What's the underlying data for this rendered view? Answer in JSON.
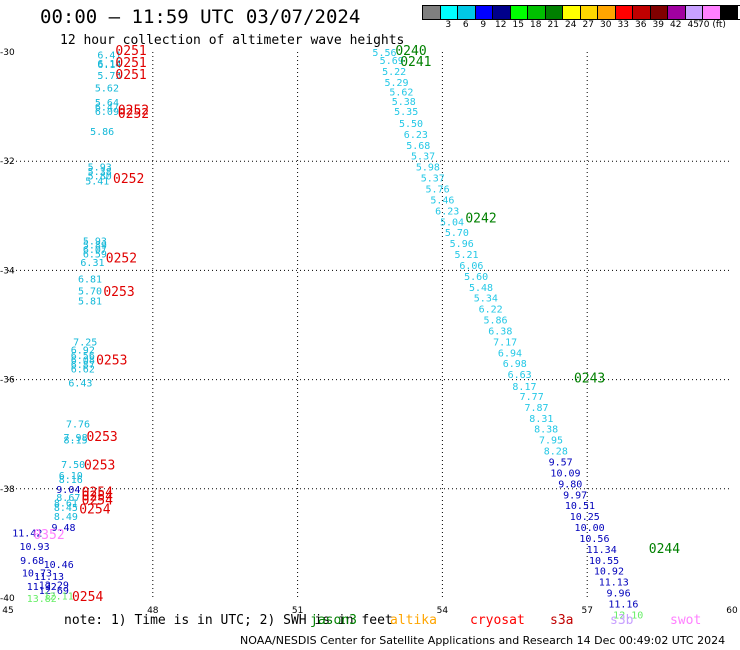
{
  "header": {
    "title": "00:00 – 11:59 UTC 03/07/2024",
    "subtitle": "12 hour collection of altimeter wave heights"
  },
  "legend": {
    "items": [
      {
        "label": "",
        "color": "#7f7f7f"
      },
      {
        "label": "3",
        "color": "#00ffff"
      },
      {
        "label": "6",
        "color": "#00c8e6"
      },
      {
        "label": "9",
        "color": "#0000ff"
      },
      {
        "label": "12",
        "color": "#00008b"
      },
      {
        "label": "15",
        "color": "#00ff00"
      },
      {
        "label": "18",
        "color": "#00c000"
      },
      {
        "label": "21",
        "color": "#008000"
      },
      {
        "label": "24",
        "color": "#ffff00"
      },
      {
        "label": "27",
        "color": "#ffd700"
      },
      {
        "label": "30",
        "color": "#ffa500"
      },
      {
        "label": "33",
        "color": "#ff0000"
      },
      {
        "label": "36",
        "color": "#c00000"
      },
      {
        "label": "39",
        "color": "#800000"
      },
      {
        "label": "42",
        "color": "#a000a0"
      },
      {
        "label": "45",
        "color": "#c8a0ff"
      },
      {
        "label": "70 (ft)",
        "color": "#ff80ff"
      },
      {
        "label": "",
        "color": "#000000"
      }
    ]
  },
  "footnote": "note: 1) Time is in UTC; 2) SWH is in feet",
  "missions": [
    {
      "label": "jason3",
      "color": "#008000"
    },
    {
      "label": "altika",
      "color": "#ffa500"
    },
    {
      "label": "cryosat",
      "color": "#ff0000"
    },
    {
      "label": "s3a",
      "color": "#c00000"
    },
    {
      "label": "s3b",
      "color": "#c8a0ff"
    },
    {
      "label": "swot",
      "color": "#ff80ff"
    }
  ],
  "credit": "NOAA/NESDIS Center for Satellite Applications and Research    14 Dec 00:49:02 UTC 2024",
  "chart_data": {
    "type": "scatter",
    "xlim": [
      45,
      60
    ],
    "ylim": [
      -40,
      -30
    ],
    "x_ticks": [
      "45",
      "48",
      "51",
      "54",
      "57",
      "60"
    ],
    "y_ticks": [
      "-30",
      "-32",
      "-34",
      "-36",
      "-38",
      "-40"
    ],
    "grid": true,
    "series": [
      {
        "name": "",
        "color": "#12b8d8",
        "points": [
          {
            "x": 47.1,
            "y": -30.05,
            "t": "6.41"
          },
          {
            "x": 47.1,
            "y": -30.2,
            "t": "6.14"
          },
          {
            "x": 47.1,
            "y": -30.22,
            "t": "6.14"
          },
          {
            "x": 47.1,
            "y": -30.42,
            "t": "5.75"
          },
          {
            "x": 47.05,
            "y": -30.65,
            "t": "5.62"
          },
          {
            "x": 47.05,
            "y": -30.92,
            "t": "5.64"
          },
          {
            "x": 47.05,
            "y": -31.0,
            "t": "6.47"
          },
          {
            "x": 47.05,
            "y": -31.08,
            "t": "6.09"
          },
          {
            "x": 46.95,
            "y": -31.45,
            "t": "5.86"
          },
          {
            "x": 46.9,
            "y": -32.1,
            "t": "5.93"
          },
          {
            "x": 46.9,
            "y": -32.18,
            "t": "5.38"
          },
          {
            "x": 46.9,
            "y": -32.26,
            "t": "5.80"
          },
          {
            "x": 46.85,
            "y": -32.35,
            "t": "5.41"
          },
          {
            "x": 46.8,
            "y": -33.45,
            "t": "5.93"
          },
          {
            "x": 46.8,
            "y": -33.53,
            "t": "5.89"
          },
          {
            "x": 46.8,
            "y": -33.61,
            "t": "6.07"
          },
          {
            "x": 46.8,
            "y": -33.69,
            "t": "6.59"
          },
          {
            "x": 46.75,
            "y": -33.85,
            "t": "6.31"
          },
          {
            "x": 46.7,
            "y": -34.15,
            "t": "6.81"
          },
          {
            "x": 46.7,
            "y": -34.37,
            "t": "5.70"
          },
          {
            "x": 46.7,
            "y": -34.55,
            "t": "5.81"
          },
          {
            "x": 46.6,
            "y": -35.3,
            "t": "7.25"
          },
          {
            "x": 46.55,
            "y": -35.45,
            "t": "6.92"
          },
          {
            "x": 46.55,
            "y": -35.55,
            "t": "6.56"
          },
          {
            "x": 46.55,
            "y": -35.63,
            "t": "6.08"
          },
          {
            "x": 46.55,
            "y": -35.71,
            "t": "6.87"
          },
          {
            "x": 46.55,
            "y": -35.8,
            "t": "6.62"
          },
          {
            "x": 46.5,
            "y": -36.05,
            "t": "6.43"
          },
          {
            "x": 46.45,
            "y": -36.8,
            "t": "7.76"
          },
          {
            "x": 46.4,
            "y": -37.05,
            "t": "7.98"
          },
          {
            "x": 46.4,
            "y": -37.1,
            "t": "8.15"
          },
          {
            "x": 46.35,
            "y": -37.55,
            "t": "7.50"
          },
          {
            "x": 46.3,
            "y": -37.75,
            "t": "6.10"
          },
          {
            "x": 46.3,
            "y": -37.82,
            "t": "8.16"
          },
          {
            "x": 46.25,
            "y": -38.15,
            "t": "8.67"
          },
          {
            "x": 46.2,
            "y": -38.25,
            "t": "8.61"
          },
          {
            "x": 46.2,
            "y": -38.33,
            "t": "8.45"
          },
          {
            "x": 46.2,
            "y": -38.5,
            "t": "8.49"
          }
        ]
      },
      {
        "name": "",
        "color": "#0000bb",
        "points": [
          {
            "x": 46.25,
            "y": -38.0,
            "t": "9.04"
          },
          {
            "x": 46.15,
            "y": -38.7,
            "t": "9.48"
          },
          {
            "x": 45.4,
            "y": -38.8,
            "t": "11.42"
          },
          {
            "x": 45.55,
            "y": -39.05,
            "t": "10.93"
          },
          {
            "x": 45.5,
            "y": -39.3,
            "t": "9.68"
          },
          {
            "x": 46.05,
            "y": -39.38,
            "t": "10.46"
          },
          {
            "x": 45.6,
            "y": -39.53,
            "t": "10.73"
          },
          {
            "x": 45.85,
            "y": -39.6,
            "t": "11.13"
          },
          {
            "x": 45.7,
            "y": -39.78,
            "t": "11.92"
          },
          {
            "x": 45.95,
            "y": -39.75,
            "t": "12.29"
          },
          {
            "x": 45.95,
            "y": -39.85,
            "t": "12.69"
          }
        ]
      },
      {
        "name": "",
        "color": "#66ee66",
        "points": [
          {
            "x": 45.7,
            "y": -40.0,
            "t": "13.82"
          },
          {
            "x": 46.05,
            "y": -39.95,
            "t": "12.11"
          }
        ]
      },
      {
        "name": "",
        "color": "#ff80ff",
        "points": [
          {
            "x": 45.85,
            "y": -38.85,
            "t": "0352"
          }
        ]
      },
      {
        "name": "",
        "color": "#e00000",
        "points": [
          {
            "x": 47.55,
            "y": -29.98,
            "t": "0251"
          },
          {
            "x": 47.55,
            "y": -30.2,
            "t": "0251"
          },
          {
            "x": 47.55,
            "y": -30.42,
            "t": "0251"
          },
          {
            "x": 47.6,
            "y": -31.07,
            "t": "0252"
          },
          {
            "x": 47.6,
            "y": -31.14,
            "t": "0252"
          },
          {
            "x": 47.5,
            "y": -32.33,
            "t": "0252"
          },
          {
            "x": 47.35,
            "y": -33.78,
            "t": "0252"
          },
          {
            "x": 47.3,
            "y": -34.4,
            "t": "0253"
          },
          {
            "x": 47.15,
            "y": -35.65,
            "t": "0253"
          },
          {
            "x": 46.95,
            "y": -37.05,
            "t": "0253"
          },
          {
            "x": 46.9,
            "y": -37.57,
            "t": "0253"
          },
          {
            "x": 46.85,
            "y": -38.07,
            "t": "0254"
          },
          {
            "x": 46.85,
            "y": -38.14,
            "t": "0254"
          },
          {
            "x": 46.85,
            "y": -38.21,
            "t": "0254"
          },
          {
            "x": 46.8,
            "y": -38.38,
            "t": "0254"
          },
          {
            "x": 46.65,
            "y": -39.98,
            "t": "0254"
          }
        ]
      },
      {
        "name": "",
        "color": "#24c8e6",
        "points": [
          {
            "x": 52.8,
            "y": -30.0,
            "t": "5.56"
          },
          {
            "x": 52.95,
            "y": -30.15,
            "t": "5.69"
          },
          {
            "x": 53.0,
            "y": -30.35,
            "t": "5.22"
          },
          {
            "x": 53.05,
            "y": -30.55,
            "t": "5.29"
          },
          {
            "x": 53.15,
            "y": -30.72,
            "t": "5.62"
          },
          {
            "x": 53.2,
            "y": -30.9,
            "t": "5.38"
          },
          {
            "x": 53.25,
            "y": -31.08,
            "t": "5.35"
          },
          {
            "x": 53.35,
            "y": -31.3,
            "t": "5.50"
          },
          {
            "x": 53.45,
            "y": -31.5,
            "t": "6.23"
          },
          {
            "x": 53.5,
            "y": -31.7,
            "t": "5.68"
          },
          {
            "x": 53.6,
            "y": -31.9,
            "t": "5.37"
          },
          {
            "x": 53.7,
            "y": -32.1,
            "t": "5.98"
          },
          {
            "x": 53.8,
            "y": -32.3,
            "t": "5.37"
          },
          {
            "x": 53.9,
            "y": -32.5,
            "t": "5.76"
          },
          {
            "x": 54.0,
            "y": -32.7,
            "t": "5.46"
          },
          {
            "x": 54.1,
            "y": -32.9,
            "t": "6.23"
          },
          {
            "x": 54.2,
            "y": -33.1,
            "t": "5.04"
          },
          {
            "x": 54.3,
            "y": -33.3,
            "t": "5.70"
          },
          {
            "x": 54.4,
            "y": -33.5,
            "t": "5.96"
          },
          {
            "x": 54.5,
            "y": -33.7,
            "t": "5.21"
          },
          {
            "x": 54.6,
            "y": -33.9,
            "t": "6.06"
          },
          {
            "x": 54.7,
            "y": -34.1,
            "t": "5.60"
          },
          {
            "x": 54.8,
            "y": -34.3,
            "t": "5.48"
          },
          {
            "x": 54.9,
            "y": -34.5,
            "t": "5.34"
          },
          {
            "x": 55.0,
            "y": -34.7,
            "t": "6.22"
          },
          {
            "x": 55.1,
            "y": -34.9,
            "t": "5.86"
          },
          {
            "x": 55.2,
            "y": -35.1,
            "t": "6.38"
          },
          {
            "x": 55.3,
            "y": -35.3,
            "t": "7.17"
          },
          {
            "x": 55.4,
            "y": -35.5,
            "t": "6.94"
          },
          {
            "x": 55.5,
            "y": -35.7,
            "t": "6.98"
          },
          {
            "x": 55.6,
            "y": -35.9,
            "t": "6.63"
          },
          {
            "x": 55.7,
            "y": -36.12,
            "t": "8.17"
          },
          {
            "x": 55.85,
            "y": -36.3,
            "t": "7.77"
          },
          {
            "x": 55.95,
            "y": -36.5,
            "t": "7.87"
          },
          {
            "x": 56.05,
            "y": -36.7,
            "t": "8.31"
          },
          {
            "x": 56.15,
            "y": -36.9,
            "t": "8.38"
          },
          {
            "x": 56.25,
            "y": -37.1,
            "t": "7.95"
          },
          {
            "x": 56.35,
            "y": -37.3,
            "t": "8.28"
          }
        ]
      },
      {
        "name": "",
        "color": "#0000bb",
        "points": [
          {
            "x": 56.45,
            "y": -37.5,
            "t": "9.57"
          },
          {
            "x": 56.55,
            "y": -37.7,
            "t": "10.09"
          },
          {
            "x": 56.65,
            "y": -37.9,
            "t": "9.80"
          },
          {
            "x": 56.75,
            "y": -38.1,
            "t": "9.97"
          },
          {
            "x": 56.85,
            "y": -38.3,
            "t": "10.51"
          },
          {
            "x": 56.95,
            "y": -38.5,
            "t": "10.25"
          },
          {
            "x": 57.05,
            "y": -38.7,
            "t": "10.00"
          },
          {
            "x": 57.15,
            "y": -38.9,
            "t": "10.56"
          },
          {
            "x": 57.3,
            "y": -39.1,
            "t": "11.34"
          },
          {
            "x": 57.35,
            "y": -39.3,
            "t": "10.55"
          },
          {
            "x": 57.45,
            "y": -39.5,
            "t": "10.92"
          },
          {
            "x": 57.55,
            "y": -39.7,
            "t": "11.13"
          },
          {
            "x": 57.65,
            "y": -39.9,
            "t": "9.96"
          },
          {
            "x": 57.75,
            "y": -40.1,
            "t": "11.16"
          }
        ]
      },
      {
        "name": "",
        "color": "#66ee66",
        "points": [
          {
            "x": 57.85,
            "y": -40.3,
            "t": "12.10"
          }
        ]
      },
      {
        "name": "",
        "color": "#008000",
        "points": [
          {
            "x": 53.35,
            "y": -29.98,
            "t": "0240"
          },
          {
            "x": 53.45,
            "y": -30.18,
            "t": "0241"
          },
          {
            "x": 54.8,
            "y": -33.05,
            "t": "0242"
          },
          {
            "x": 57.05,
            "y": -35.98,
            "t": "0243"
          },
          {
            "x": 58.6,
            "y": -39.1,
            "t": "0244"
          }
        ]
      }
    ]
  }
}
